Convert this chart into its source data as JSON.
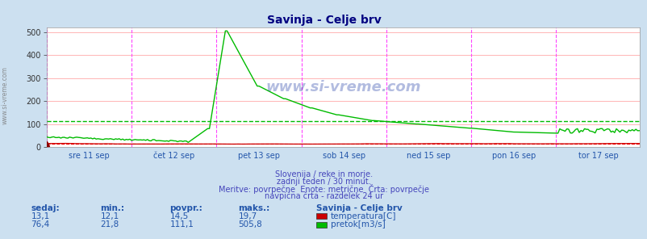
{
  "title": "Savinja - Celje brv",
  "title_color": "#000080",
  "bg_color": "#cce0f0",
  "plot_bg_color": "#ffffff",
  "fig_width": 8.03,
  "fig_height": 2.96,
  "dpi": 100,
  "ylim": [
    0,
    520
  ],
  "yticks": [
    0,
    100,
    200,
    300,
    400,
    500
  ],
  "x_day_labels": [
    "sre 11 sep",
    "čet 12 sep",
    "pet 13 sep",
    "sob 14 sep",
    "ned 15 sep",
    "pon 16 sep",
    "tor 17 sep"
  ],
  "x_day_positions": [
    0,
    48,
    96,
    144,
    192,
    240,
    288
  ],
  "n_points": 336,
  "grid_color_h": "#ffaaaa",
  "grid_color_v": "#c8c8ff",
  "vline_color": "#ff44ff",
  "avg_line_color_flow": "#00bb00",
  "avg_line_color_temp": "#ff0000",
  "temp_color": "#cc0000",
  "flow_color": "#00bb00",
  "watermark": "www.si-vreme.com",
  "subtitle1": "Slovenija / reke in morje.",
  "subtitle2": "zadnji teden / 30 minut.",
  "subtitle3": "Meritve: povrpečne  Enote: metrične  Črta: povrpečje",
  "subtitle4": "navpična črta - razdelek 24 ur",
  "subtitle_color": "#4444bb",
  "text_color": "#2255aa",
  "stats_label_color": "#2255aa",
  "stats_headers": [
    "sedaj:",
    "min.:",
    "povpr.:",
    "maks.:"
  ],
  "stats_temp": [
    "13,1",
    "12,1",
    "14,5",
    "19,7"
  ],
  "stats_flow": [
    "76,4",
    "21,8",
    "111,1",
    "505,8"
  ],
  "legend_title": "Savinja - Celje brv",
  "legend_temp": "temperatura[C]",
  "legend_flow": "pretok[m3/s]",
  "temp_avg": 14.5,
  "flow_avg": 111.1,
  "left_watermark": "www.si-vreme.com"
}
